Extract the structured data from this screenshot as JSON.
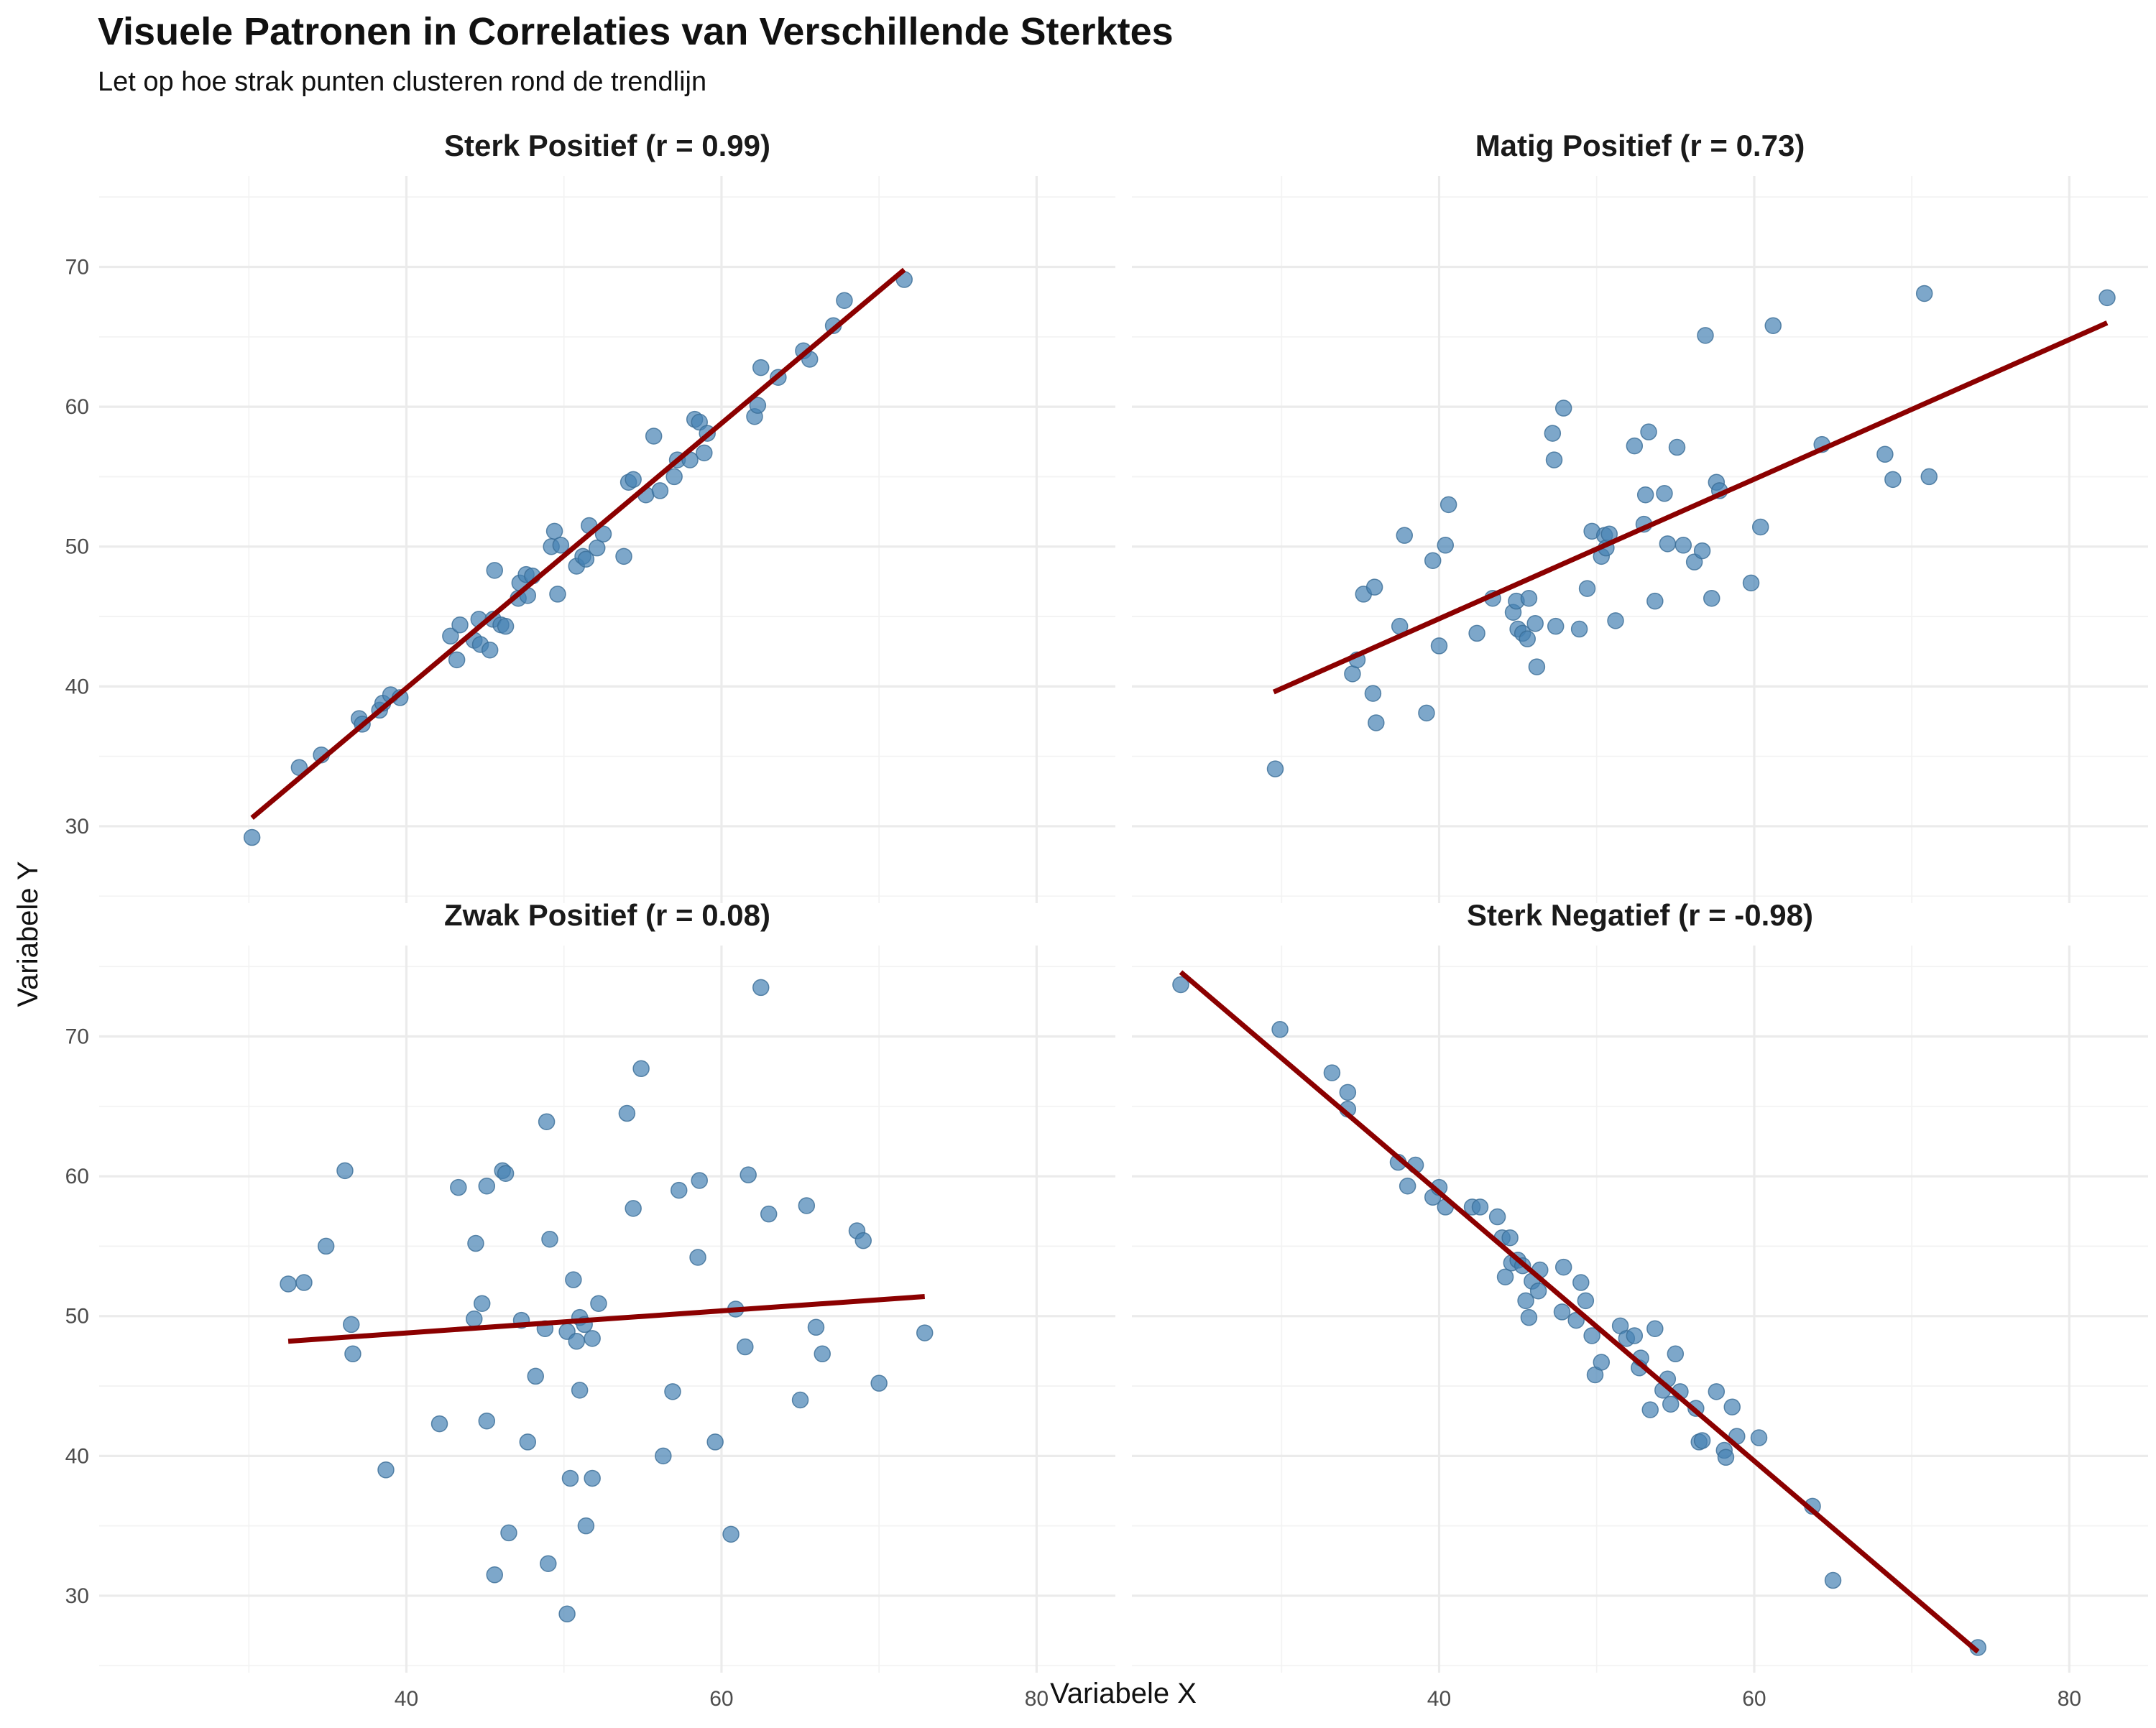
{
  "chart_data": {
    "type": "scatter",
    "title": "Visuele Patronen in Correlaties van Verschillende Sterktes",
    "subtitle": "Let op hoe strak punten clusteren rond de trendlijn",
    "xlabel": "Variabele X",
    "ylabel": "Variabele Y",
    "xlim": [
      20.5,
      85
    ],
    "ylim": [
      24.5,
      76.5
    ],
    "x_ticks": [
      40,
      60,
      80
    ],
    "y_ticks": [
      30,
      40,
      50,
      60,
      70
    ],
    "grid": true,
    "legend": "none",
    "colors": {
      "points": "#4682b4",
      "trend": "#8b0000",
      "grid": "#ebebeb"
    },
    "panels": [
      {
        "name": "Sterk Positief (r = 0.99)",
        "trend": {
          "x": [
            30.2,
            71.6
          ],
          "y": [
            30.6,
            69.8
          ]
        },
        "points": [
          [
            30.2,
            29.2
          ],
          [
            33.2,
            34.2
          ],
          [
            34.6,
            35.1
          ],
          [
            37.0,
            37.7
          ],
          [
            37.2,
            37.3
          ],
          [
            38.3,
            38.3
          ],
          [
            38.5,
            38.8
          ],
          [
            39.0,
            39.4
          ],
          [
            39.6,
            39.2
          ],
          [
            42.8,
            43.6
          ],
          [
            43.2,
            41.9
          ],
          [
            43.4,
            44.4
          ],
          [
            44.3,
            43.3
          ],
          [
            44.6,
            44.8
          ],
          [
            44.7,
            43.0
          ],
          [
            45.5,
            44.8
          ],
          [
            45.3,
            42.6
          ],
          [
            45.6,
            48.3
          ],
          [
            46.0,
            44.4
          ],
          [
            46.3,
            44.3
          ],
          [
            47.1,
            46.3
          ],
          [
            47.2,
            47.4
          ],
          [
            47.6,
            48.0
          ],
          [
            47.7,
            46.5
          ],
          [
            48.0,
            47.9
          ],
          [
            49.2,
            50.0
          ],
          [
            49.4,
            51.1
          ],
          [
            49.6,
            46.6
          ],
          [
            49.8,
            50.1
          ],
          [
            50.8,
            48.6
          ],
          [
            51.2,
            49.3
          ],
          [
            51.4,
            49.1
          ],
          [
            51.6,
            51.5
          ],
          [
            52.1,
            49.9
          ],
          [
            52.5,
            50.9
          ],
          [
            53.8,
            49.3
          ],
          [
            54.1,
            54.6
          ],
          [
            54.4,
            54.8
          ],
          [
            55.2,
            53.7
          ],
          [
            55.7,
            57.9
          ],
          [
            56.1,
            54.0
          ],
          [
            57.0,
            55.0
          ],
          [
            57.2,
            56.2
          ],
          [
            58.0,
            56.2
          ],
          [
            58.3,
            59.1
          ],
          [
            58.6,
            58.9
          ],
          [
            58.9,
            56.7
          ],
          [
            59.1,
            58.1
          ],
          [
            62.1,
            59.3
          ],
          [
            62.3,
            60.1
          ],
          [
            62.5,
            62.8
          ],
          [
            63.6,
            62.1
          ],
          [
            65.2,
            64.0
          ],
          [
            65.6,
            63.4
          ],
          [
            67.1,
            65.8
          ],
          [
            67.8,
            67.6
          ],
          [
            71.6,
            69.1
          ]
        ]
      },
      {
        "name": "Matig Positief (r = 0.73)",
        "trend": {
          "x": [
            29.5,
            82.4
          ],
          "y": [
            39.6,
            66.0
          ]
        },
        "points": [
          [
            29.6,
            34.1
          ],
          [
            34.5,
            40.9
          ],
          [
            34.8,
            41.9
          ],
          [
            35.2,
            46.6
          ],
          [
            35.8,
            39.5
          ],
          [
            35.9,
            47.1
          ],
          [
            36.0,
            37.4
          ],
          [
            37.5,
            44.3
          ],
          [
            37.8,
            50.8
          ],
          [
            39.2,
            38.1
          ],
          [
            39.6,
            49.0
          ],
          [
            40.0,
            42.9
          ],
          [
            40.4,
            50.1
          ],
          [
            40.6,
            53.0
          ],
          [
            42.4,
            43.8
          ],
          [
            43.4,
            46.3
          ],
          [
            44.7,
            45.3
          ],
          [
            44.9,
            46.1
          ],
          [
            45.0,
            44.1
          ],
          [
            45.3,
            43.8
          ],
          [
            45.6,
            43.4
          ],
          [
            45.7,
            46.3
          ],
          [
            46.1,
            44.5
          ],
          [
            46.2,
            41.4
          ],
          [
            47.2,
            58.1
          ],
          [
            47.3,
            56.2
          ],
          [
            47.4,
            44.3
          ],
          [
            47.9,
            59.9
          ],
          [
            48.9,
            44.1
          ],
          [
            49.4,
            47.0
          ],
          [
            49.7,
            51.1
          ],
          [
            50.3,
            49.3
          ],
          [
            50.5,
            50.8
          ],
          [
            50.6,
            49.9
          ],
          [
            50.8,
            50.9
          ],
          [
            51.2,
            44.7
          ],
          [
            52.4,
            57.2
          ],
          [
            53.0,
            51.6
          ],
          [
            53.1,
            53.7
          ],
          [
            53.3,
            58.2
          ],
          [
            53.7,
            46.1
          ],
          [
            54.3,
            53.8
          ],
          [
            54.5,
            50.2
          ],
          [
            55.1,
            57.1
          ],
          [
            55.5,
            50.1
          ],
          [
            56.2,
            48.9
          ],
          [
            56.7,
            49.7
          ],
          [
            56.9,
            65.1
          ],
          [
            57.3,
            46.3
          ],
          [
            57.6,
            54.6
          ],
          [
            57.8,
            54.0
          ],
          [
            59.8,
            47.4
          ],
          [
            60.4,
            51.4
          ],
          [
            61.2,
            65.8
          ],
          [
            64.3,
            57.3
          ],
          [
            68.3,
            56.6
          ],
          [
            68.8,
            54.8
          ],
          [
            70.8,
            68.1
          ],
          [
            71.1,
            55.0
          ],
          [
            82.4,
            67.8
          ]
        ]
      },
      {
        "name": "Zwak Positief (r = 0.08)",
        "trend": {
          "x": [
            32.5,
            72.9
          ],
          "y": [
            48.2,
            51.4
          ]
        },
        "points": [
          [
            32.5,
            52.3
          ],
          [
            33.5,
            52.4
          ],
          [
            34.9,
            55.0
          ],
          [
            36.1,
            60.4
          ],
          [
            36.5,
            49.4
          ],
          [
            36.6,
            47.3
          ],
          [
            38.7,
            39.0
          ],
          [
            42.1,
            42.3
          ],
          [
            43.3,
            59.2
          ],
          [
            44.3,
            49.8
          ],
          [
            44.4,
            55.2
          ],
          [
            44.8,
            50.9
          ],
          [
            45.1,
            42.5
          ],
          [
            45.1,
            59.3
          ],
          [
            45.6,
            31.5
          ],
          [
            46.1,
            60.4
          ],
          [
            46.3,
            60.2
          ],
          [
            46.5,
            34.5
          ],
          [
            47.3,
            49.7
          ],
          [
            47.7,
            41.0
          ],
          [
            48.2,
            45.7
          ],
          [
            48.8,
            49.1
          ],
          [
            48.9,
            63.9
          ],
          [
            49.0,
            32.3
          ],
          [
            49.1,
            55.5
          ],
          [
            50.2,
            28.7
          ],
          [
            50.2,
            48.9
          ],
          [
            50.4,
            38.4
          ],
          [
            50.6,
            52.6
          ],
          [
            50.8,
            48.2
          ],
          [
            51.0,
            49.9
          ],
          [
            51.0,
            44.7
          ],
          [
            51.3,
            49.4
          ],
          [
            51.4,
            35.0
          ],
          [
            51.8,
            48.4
          ],
          [
            51.8,
            38.4
          ],
          [
            52.2,
            50.9
          ],
          [
            54.0,
            64.5
          ],
          [
            54.4,
            57.7
          ],
          [
            54.9,
            67.7
          ],
          [
            56.3,
            40.0
          ],
          [
            56.9,
            44.6
          ],
          [
            57.3,
            59.0
          ],
          [
            58.5,
            54.2
          ],
          [
            58.6,
            59.7
          ],
          [
            59.6,
            41.0
          ],
          [
            60.6,
            34.4
          ],
          [
            60.9,
            50.5
          ],
          [
            61.5,
            47.8
          ],
          [
            61.7,
            60.1
          ],
          [
            62.5,
            73.5
          ],
          [
            63.0,
            57.3
          ],
          [
            65.0,
            44.0
          ],
          [
            65.4,
            57.9
          ],
          [
            66.0,
            49.2
          ],
          [
            66.4,
            47.3
          ],
          [
            68.6,
            56.1
          ],
          [
            69.0,
            55.4
          ],
          [
            70.0,
            45.2
          ],
          [
            72.9,
            48.8
          ]
        ]
      },
      {
        "name": "Sterk Negatief (r = -0.98)",
        "trend": {
          "x": [
            23.6,
            74.2
          ],
          "y": [
            74.6,
            26.0
          ]
        },
        "points": [
          [
            23.6,
            73.7
          ],
          [
            29.9,
            70.5
          ],
          [
            33.2,
            67.4
          ],
          [
            34.2,
            66.0
          ],
          [
            34.2,
            64.8
          ],
          [
            37.4,
            61.0
          ],
          [
            38.0,
            59.3
          ],
          [
            38.5,
            60.8
          ],
          [
            39.6,
            58.5
          ],
          [
            40.0,
            59.2
          ],
          [
            40.4,
            57.8
          ],
          [
            42.1,
            57.8
          ],
          [
            42.6,
            57.8
          ],
          [
            43.7,
            57.1
          ],
          [
            44.0,
            55.6
          ],
          [
            44.2,
            52.8
          ],
          [
            44.5,
            55.6
          ],
          [
            44.6,
            53.8
          ],
          [
            45.0,
            54.0
          ],
          [
            45.3,
            53.6
          ],
          [
            45.5,
            51.1
          ],
          [
            45.7,
            49.9
          ],
          [
            45.9,
            52.5
          ],
          [
            46.3,
            51.8
          ],
          [
            46.4,
            53.3
          ],
          [
            47.9,
            53.5
          ],
          [
            47.8,
            50.3
          ],
          [
            48.7,
            49.7
          ],
          [
            49.0,
            52.4
          ],
          [
            49.3,
            51.1
          ],
          [
            49.7,
            48.6
          ],
          [
            49.9,
            45.8
          ],
          [
            50.3,
            46.7
          ],
          [
            51.5,
            49.3
          ],
          [
            51.9,
            48.4
          ],
          [
            52.4,
            48.6
          ],
          [
            52.7,
            46.3
          ],
          [
            52.8,
            47.0
          ],
          [
            53.4,
            43.3
          ],
          [
            53.7,
            49.1
          ],
          [
            54.2,
            44.7
          ],
          [
            54.5,
            45.5
          ],
          [
            54.7,
            43.7
          ],
          [
            55.0,
            47.3
          ],
          [
            55.3,
            44.6
          ],
          [
            56.3,
            43.4
          ],
          [
            56.5,
            41.0
          ],
          [
            56.7,
            41.1
          ],
          [
            57.6,
            44.6
          ],
          [
            58.1,
            40.4
          ],
          [
            58.2,
            39.9
          ],
          [
            58.6,
            43.5
          ],
          [
            58.9,
            41.4
          ],
          [
            60.3,
            41.3
          ],
          [
            63.7,
            36.4
          ],
          [
            65.0,
            31.1
          ],
          [
            74.2,
            26.3
          ]
        ]
      }
    ]
  }
}
